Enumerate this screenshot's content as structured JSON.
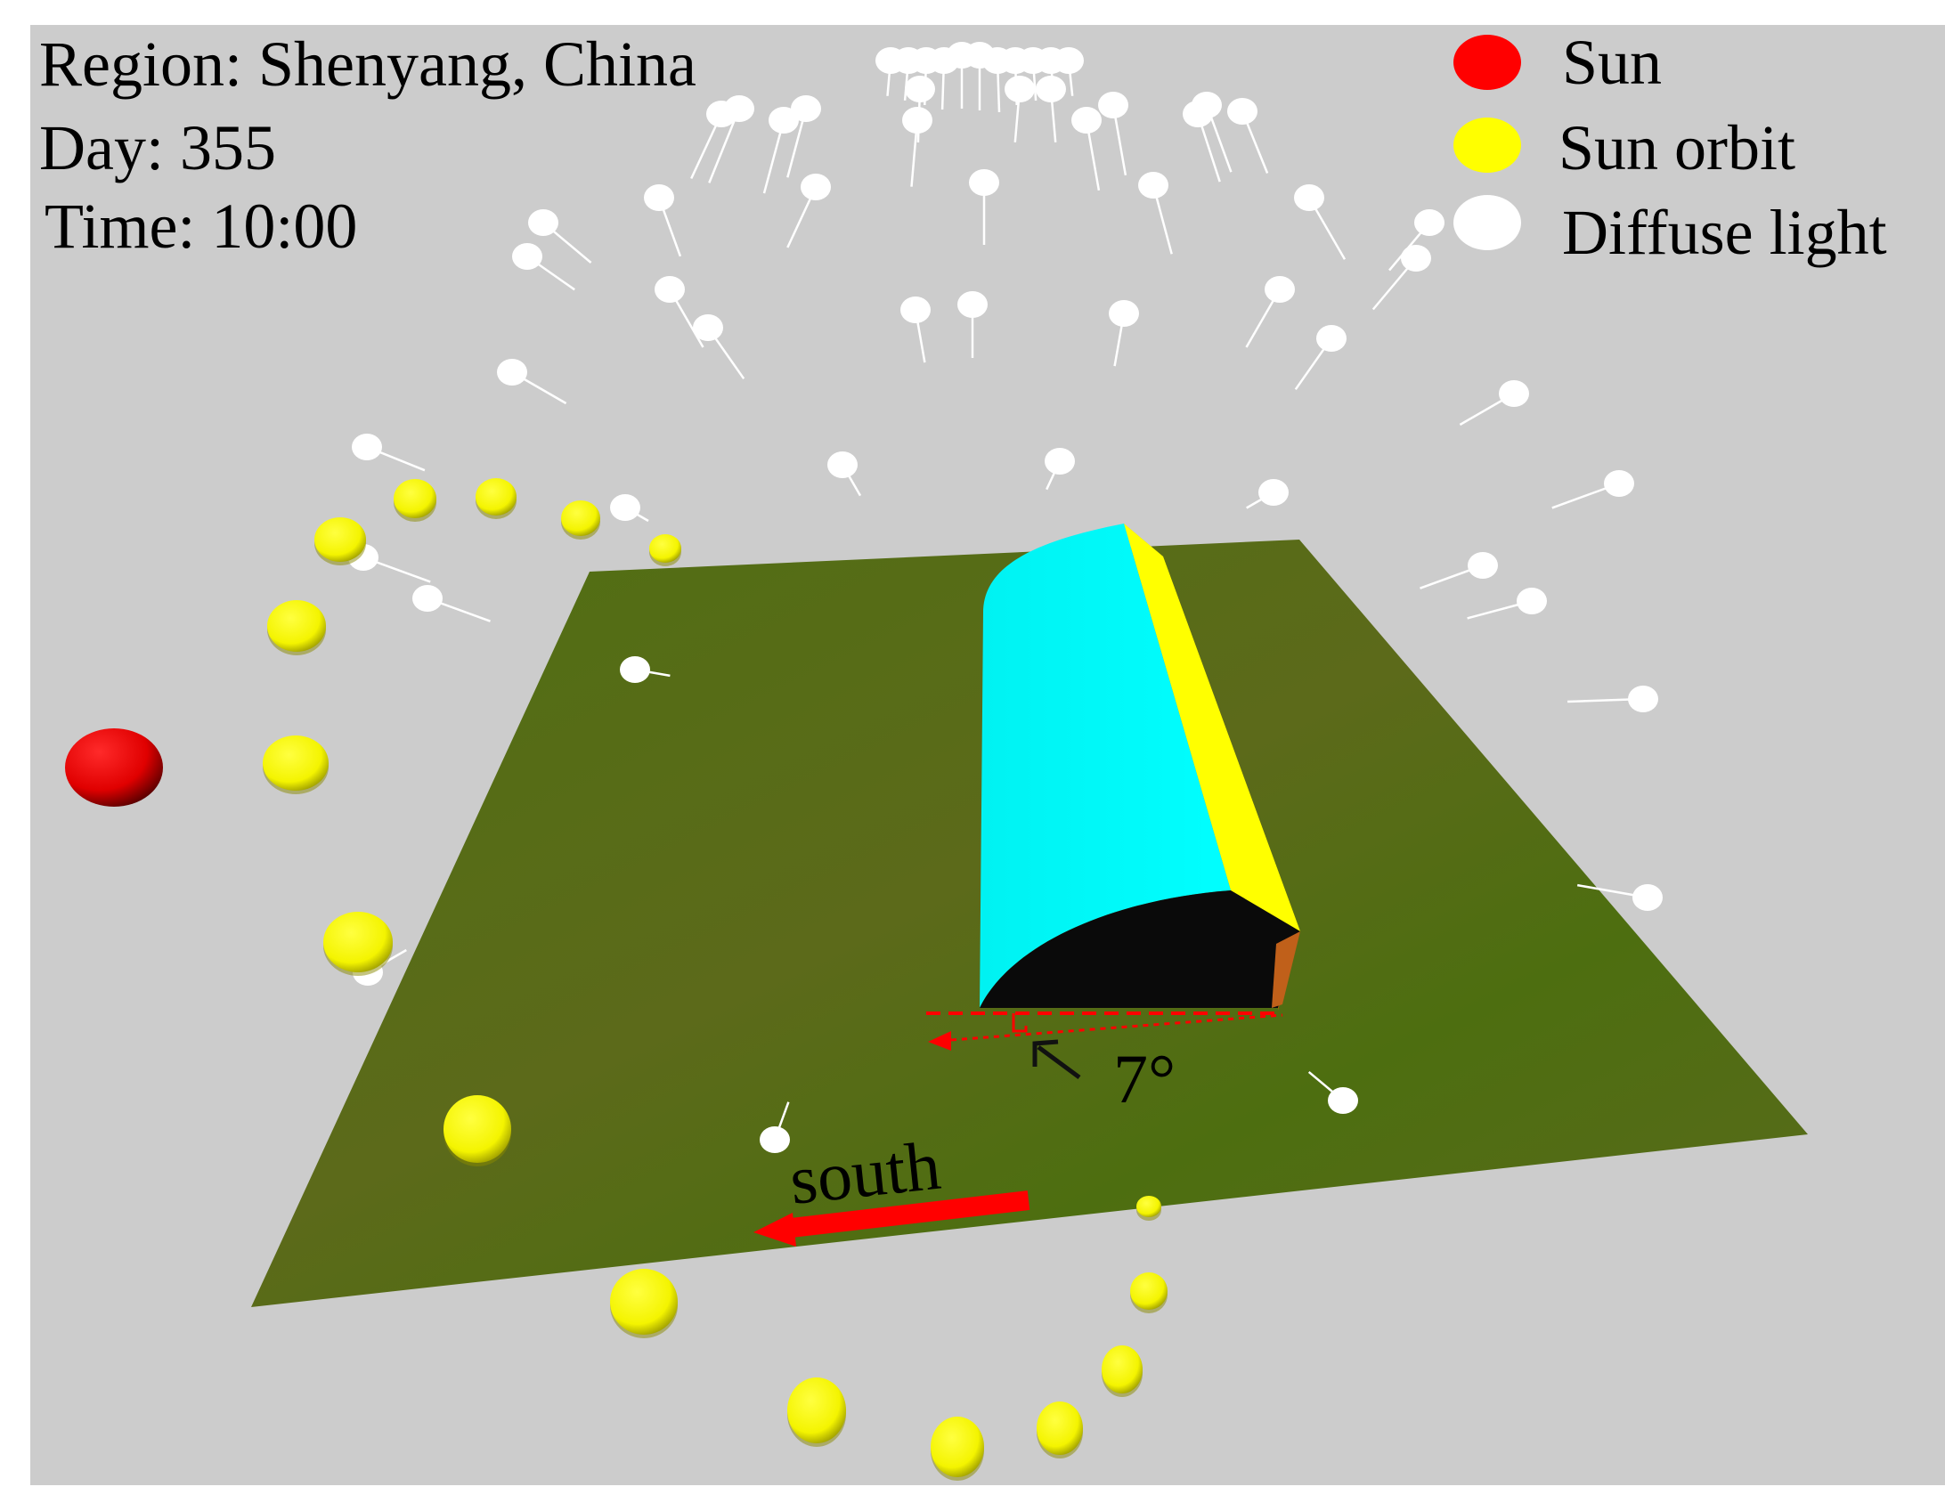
{
  "info": {
    "region": "Region: Shenyang, China",
    "day": "Day: 355",
    "time": "Time: 10:00"
  },
  "legend": {
    "items": [
      {
        "label": "Sun",
        "color": "#ff0000"
      },
      {
        "label": "Sun orbit",
        "color": "#ffff00"
      },
      {
        "label": "Diffuse light",
        "color": "#ffffff"
      }
    ]
  },
  "annotations": {
    "angle": "7°",
    "direction": "south"
  },
  "colors": {
    "background": "#cccccc",
    "ground": "#536d14",
    "greenhouse_roof": "#00ffff",
    "greenhouse_back_wall": "#ffff00",
    "greenhouse_end": "#0a0a0a",
    "sun": "#ff0000",
    "sun_orbit": "#ffff00",
    "diffuse_light": "#ffffff",
    "arrow": "#ff0000"
  }
}
